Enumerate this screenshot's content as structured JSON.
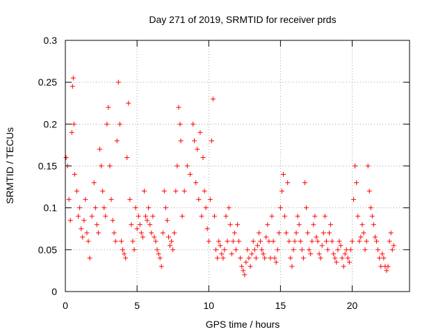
{
  "chart_data": {
    "type": "scatter",
    "title": "Day 271 of 2019, SRMTID for receiver prds",
    "xlabel": "GPS time / hours",
    "ylabel": "SRMTID / TECUs",
    "xlim": [
      0,
      24
    ],
    "ylim": [
      0,
      0.3
    ],
    "xticks": [
      "0",
      "5",
      "10",
      "15",
      "20"
    ],
    "yticks": [
      "0",
      "0.05",
      "0.1",
      "0.15",
      "0.2",
      "0.25",
      "0.3"
    ],
    "grid": true,
    "marker": "plus",
    "series": [
      {
        "name": "SRMTID",
        "color": "#ff0000",
        "points": [
          [
            0.05,
            0.16
          ],
          [
            0.15,
            0.15
          ],
          [
            0.25,
            0.11
          ],
          [
            0.35,
            0.085
          ],
          [
            0.45,
            0.19
          ],
          [
            0.5,
            0.245
          ],
          [
            0.55,
            0.255
          ],
          [
            0.6,
            0.2
          ],
          [
            0.65,
            0.14
          ],
          [
            0.8,
            0.12
          ],
          [
            0.9,
            0.09
          ],
          [
            1.0,
            0.1
          ],
          [
            1.1,
            0.075
          ],
          [
            1.2,
            0.065
          ],
          [
            1.3,
            0.085
          ],
          [
            1.4,
            0.11
          ],
          [
            1.5,
            0.07
          ],
          [
            1.6,
            0.06
          ],
          [
            1.7,
            0.04
          ],
          [
            1.85,
            0.09
          ],
          [
            2.0,
            0.13
          ],
          [
            2.1,
            0.1
          ],
          [
            2.2,
            0.08
          ],
          [
            2.3,
            0.07
          ],
          [
            2.4,
            0.17
          ],
          [
            2.5,
            0.15
          ],
          [
            2.6,
            0.12
          ],
          [
            2.7,
            0.1
          ],
          [
            2.8,
            0.09
          ],
          [
            2.9,
            0.2
          ],
          [
            3.0,
            0.22
          ],
          [
            3.1,
            0.15
          ],
          [
            3.2,
            0.11
          ],
          [
            3.3,
            0.085
          ],
          [
            3.4,
            0.07
          ],
          [
            3.5,
            0.06
          ],
          [
            3.6,
            0.18
          ],
          [
            3.7,
            0.25
          ],
          [
            3.8,
            0.2
          ],
          [
            3.9,
            0.06
          ],
          [
            4.0,
            0.05
          ],
          [
            4.1,
            0.045
          ],
          [
            4.2,
            0.04
          ],
          [
            4.3,
            0.16
          ],
          [
            4.4,
            0.225
          ],
          [
            4.5,
            0.11
          ],
          [
            4.6,
            0.08
          ],
          [
            4.7,
            0.06
          ],
          [
            4.8,
            0.05
          ],
          [
            4.9,
            0.1
          ],
          [
            5.0,
            0.075
          ],
          [
            5.1,
            0.09
          ],
          [
            5.2,
            0.08
          ],
          [
            5.3,
            0.07
          ],
          [
            5.4,
            0.065
          ],
          [
            5.5,
            0.12
          ],
          [
            5.6,
            0.09
          ],
          [
            5.7,
            0.085
          ],
          [
            5.8,
            0.1
          ],
          [
            5.9,
            0.08
          ],
          [
            6.0,
            0.07
          ],
          [
            6.1,
            0.09
          ],
          [
            6.2,
            0.065
          ],
          [
            6.3,
            0.06
          ],
          [
            6.4,
            0.05
          ],
          [
            6.5,
            0.045
          ],
          [
            6.6,
            0.04
          ],
          [
            6.7,
            0.03
          ],
          [
            6.8,
            0.07
          ],
          [
            6.9,
            0.12
          ],
          [
            7.0,
            0.1
          ],
          [
            7.1,
            0.085
          ],
          [
            7.2,
            0.065
          ],
          [
            7.3,
            0.055
          ],
          [
            7.4,
            0.06
          ],
          [
            7.5,
            0.05
          ],
          [
            7.6,
            0.07
          ],
          [
            7.7,
            0.12
          ],
          [
            7.8,
            0.15
          ],
          [
            7.9,
            0.22
          ],
          [
            8.0,
            0.2
          ],
          [
            8.05,
            0.18
          ],
          [
            8.15,
            0.09
          ],
          [
            8.3,
            0.12
          ],
          [
            8.5,
            0.15
          ],
          [
            8.7,
            0.14
          ],
          [
            8.9,
            0.2
          ],
          [
            9.0,
            0.18
          ],
          [
            9.1,
            0.13
          ],
          [
            9.2,
            0.17
          ],
          [
            9.3,
            0.11
          ],
          [
            9.4,
            0.19
          ],
          [
            9.5,
            0.09
          ],
          [
            9.6,
            0.16
          ],
          [
            9.7,
            0.12
          ],
          [
            9.8,
            0.1
          ],
          [
            9.9,
            0.075
          ],
          [
            10.0,
            0.06
          ],
          [
            10.1,
            0.11
          ],
          [
            10.2,
            0.18
          ],
          [
            10.3,
            0.23
          ],
          [
            10.4,
            0.09
          ],
          [
            10.5,
            0.05
          ],
          [
            10.6,
            0.04
          ],
          [
            10.7,
            0.06
          ],
          [
            10.8,
            0.055
          ],
          [
            10.9,
            0.045
          ],
          [
            11.0,
            0.04
          ],
          [
            11.1,
            0.05
          ],
          [
            11.2,
            0.09
          ],
          [
            11.3,
            0.06
          ],
          [
            11.4,
            0.1
          ],
          [
            11.5,
            0.08
          ],
          [
            11.6,
            0.045
          ],
          [
            11.7,
            0.06
          ],
          [
            11.8,
            0.07
          ],
          [
            11.9,
            0.05
          ],
          [
            12.0,
            0.08
          ],
          [
            12.1,
            0.06
          ],
          [
            12.2,
            0.04
          ],
          [
            12.3,
            0.03
          ],
          [
            12.4,
            0.025
          ],
          [
            12.5,
            0.02
          ],
          [
            12.6,
            0.035
          ],
          [
            12.7,
            0.05
          ],
          [
            12.8,
            0.04
          ],
          [
            12.9,
            0.03
          ],
          [
            13.0,
            0.045
          ],
          [
            13.1,
            0.06
          ],
          [
            13.2,
            0.05
          ],
          [
            13.3,
            0.04
          ],
          [
            13.4,
            0.055
          ],
          [
            13.5,
            0.07
          ],
          [
            13.6,
            0.06
          ],
          [
            13.7,
            0.05
          ],
          [
            13.8,
            0.045
          ],
          [
            13.9,
            0.04
          ],
          [
            14.0,
            0.065
          ],
          [
            14.1,
            0.08
          ],
          [
            14.2,
            0.06
          ],
          [
            14.3,
            0.04
          ],
          [
            14.4,
            0.09
          ],
          [
            14.5,
            0.06
          ],
          [
            14.6,
            0.04
          ],
          [
            14.7,
            0.035
          ],
          [
            14.8,
            0.05
          ],
          [
            14.9,
            0.07
          ],
          [
            15.0,
            0.1
          ],
          [
            15.1,
            0.12
          ],
          [
            15.2,
            0.14
          ],
          [
            15.3,
            0.09
          ],
          [
            15.4,
            0.07
          ],
          [
            15.5,
            0.13
          ],
          [
            15.6,
            0.06
          ],
          [
            15.7,
            0.04
          ],
          [
            15.8,
            0.03
          ],
          [
            15.9,
            0.05
          ],
          [
            16.0,
            0.06
          ],
          [
            16.1,
            0.07
          ],
          [
            16.2,
            0.09
          ],
          [
            16.3,
            0.08
          ],
          [
            16.4,
            0.06
          ],
          [
            16.5,
            0.05
          ],
          [
            16.6,
            0.04
          ],
          [
            16.7,
            0.13
          ],
          [
            16.8,
            0.1
          ],
          [
            16.9,
            0.07
          ],
          [
            17.0,
            0.05
          ],
          [
            17.1,
            0.045
          ],
          [
            17.2,
            0.06
          ],
          [
            17.3,
            0.08
          ],
          [
            17.4,
            0.09
          ],
          [
            17.5,
            0.065
          ],
          [
            17.6,
            0.06
          ],
          [
            17.7,
            0.045
          ],
          [
            17.8,
            0.04
          ],
          [
            17.9,
            0.055
          ],
          [
            18.0,
            0.07
          ],
          [
            18.1,
            0.09
          ],
          [
            18.2,
            0.06
          ],
          [
            18.3,
            0.05
          ],
          [
            18.4,
            0.07
          ],
          [
            18.5,
            0.08
          ],
          [
            18.6,
            0.06
          ],
          [
            18.7,
            0.045
          ],
          [
            18.8,
            0.04
          ],
          [
            18.9,
            0.035
          ],
          [
            19.0,
            0.05
          ],
          [
            19.1,
            0.06
          ],
          [
            19.2,
            0.055
          ],
          [
            19.3,
            0.04
          ],
          [
            19.4,
            0.03
          ],
          [
            19.5,
            0.045
          ],
          [
            19.6,
            0.05
          ],
          [
            19.7,
            0.04
          ],
          [
            19.8,
            0.035
          ],
          [
            19.9,
            0.05
          ],
          [
            20.0,
            0.06
          ],
          [
            20.1,
            0.11
          ],
          [
            20.2,
            0.15
          ],
          [
            20.3,
            0.13
          ],
          [
            20.4,
            0.09
          ],
          [
            20.5,
            0.06
          ],
          [
            20.6,
            0.065
          ],
          [
            20.7,
            0.08
          ],
          [
            20.8,
            0.07
          ],
          [
            20.9,
            0.05
          ],
          [
            21.0,
            0.06
          ],
          [
            21.1,
            0.15
          ],
          [
            21.2,
            0.12
          ],
          [
            21.3,
            0.1
          ],
          [
            21.4,
            0.09
          ],
          [
            21.5,
            0.08
          ],
          [
            21.6,
            0.065
          ],
          [
            21.7,
            0.06
          ],
          [
            21.8,
            0.05
          ],
          [
            21.9,
            0.04
          ],
          [
            22.0,
            0.03
          ],
          [
            22.1,
            0.045
          ],
          [
            22.2,
            0.04
          ],
          [
            22.3,
            0.03
          ],
          [
            22.4,
            0.025
          ],
          [
            22.5,
            0.03
          ],
          [
            22.6,
            0.06
          ],
          [
            22.7,
            0.07
          ],
          [
            22.8,
            0.05
          ],
          [
            22.9,
            0.055
          ]
        ]
      }
    ]
  }
}
